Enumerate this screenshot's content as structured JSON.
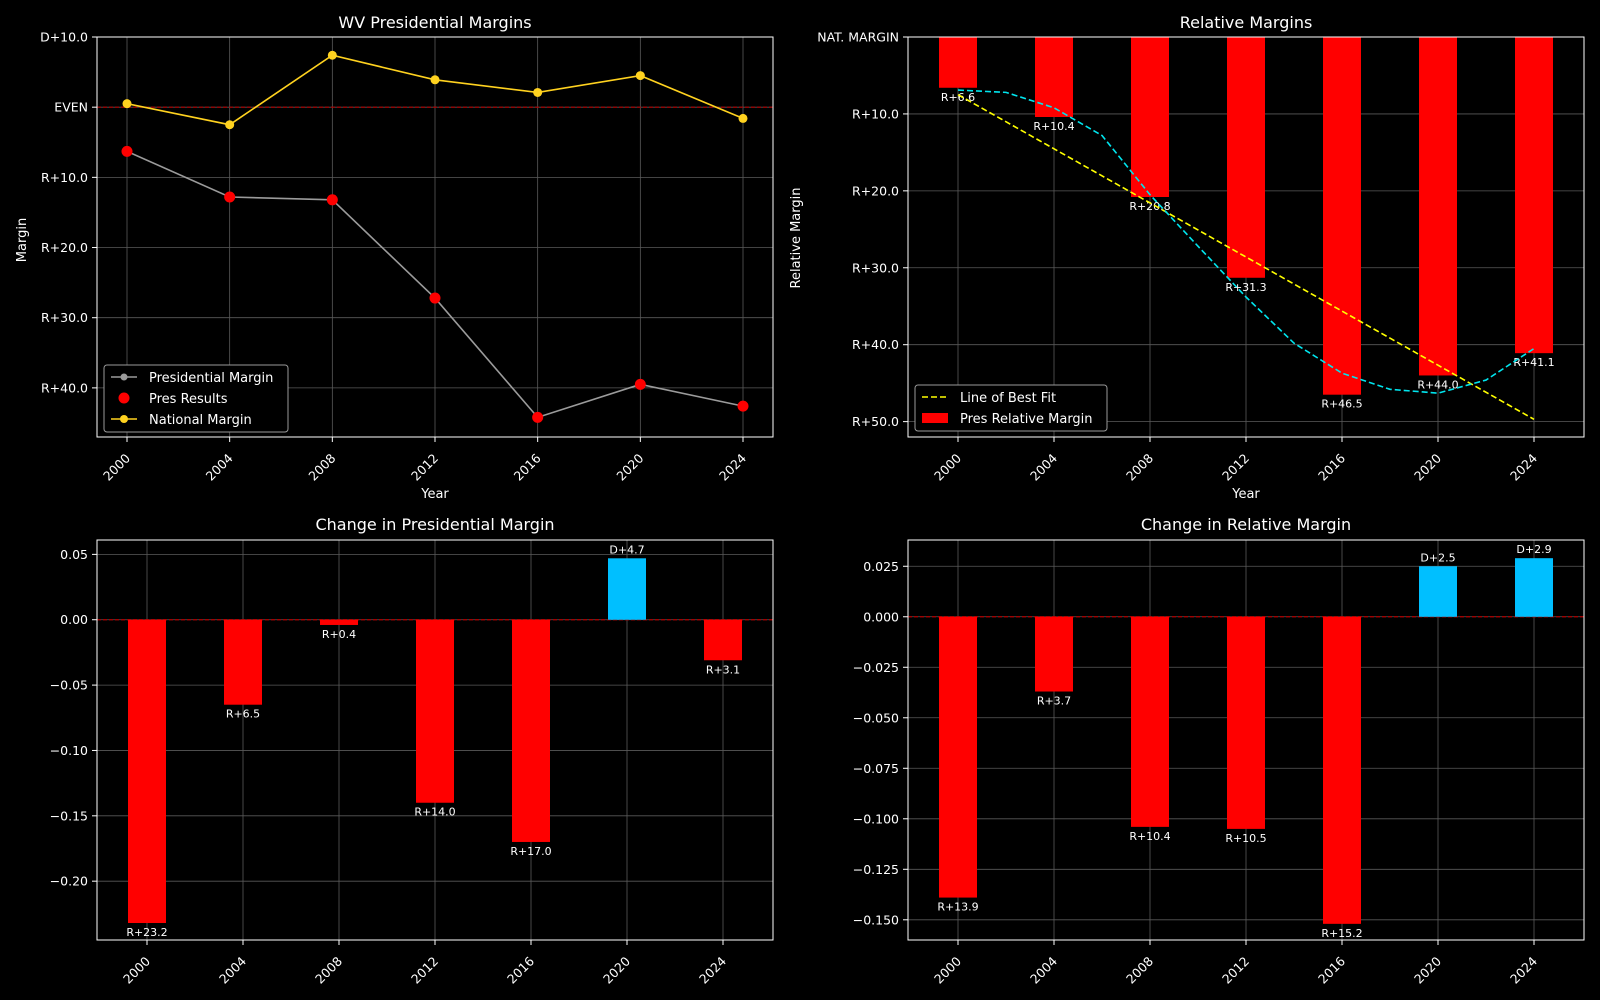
{
  "figure": {
    "background": "#000000",
    "text_color": "#ffffff",
    "grid_color": "#5a5a5a"
  },
  "chart_data": [
    {
      "id": "wv-margins",
      "type": "line",
      "title": "WV Presidential Margins",
      "xlabel": "Year",
      "ylabel": "Margin",
      "categories": [
        "2000",
        "2004",
        "2008",
        "2012",
        "2016",
        "2020",
        "2024"
      ],
      "ylim": [
        -0.47,
        0.1
      ],
      "yticks": [
        {
          "value": 0.1,
          "label": "D+10.0"
        },
        {
          "value": 0.0,
          "label": "EVEN"
        },
        {
          "value": -0.1,
          "label": "R+10.0"
        },
        {
          "value": -0.2,
          "label": "R+20.0"
        },
        {
          "value": -0.3,
          "label": "R+30.0"
        },
        {
          "value": -0.4,
          "label": "R+40.0"
        }
      ],
      "reference_line": {
        "value": 0.0,
        "color": "#b30000",
        "style": "dashed"
      },
      "series": [
        {
          "name": "Presidential Margin",
          "color": "#9b9b9b",
          "marker": "circle",
          "values": [
            -0.063,
            -0.128,
            -0.132,
            -0.272,
            -0.442,
            -0.395,
            -0.426
          ]
        },
        {
          "name": "Pres Results",
          "color": "#ff0000",
          "marker": "large-circle",
          "style": "points-only",
          "values": [
            -0.063,
            -0.128,
            -0.132,
            -0.272,
            -0.442,
            -0.395,
            -0.426
          ]
        },
        {
          "name": "National Margin",
          "color": "#ffd21f",
          "marker": "circle",
          "values": [
            0.005,
            -0.025,
            0.074,
            0.039,
            0.021,
            0.045,
            -0.016
          ]
        }
      ],
      "legend_position": "lower-left",
      "legend": [
        "Presidential Margin",
        "Pres Results",
        "National Margin"
      ]
    },
    {
      "id": "relative-margins",
      "type": "bar",
      "title": "Relative Margins",
      "xlabel": "Year",
      "ylabel": "Relative Margin",
      "categories": [
        "2000",
        "2004",
        "2008",
        "2012",
        "2016",
        "2020",
        "2024"
      ],
      "ylim": [
        -0.52,
        0.0
      ],
      "yticks": [
        {
          "value": 0.0,
          "label": "NAT. MARGIN"
        },
        {
          "value": -0.1,
          "label": "R+10.0"
        },
        {
          "value": -0.2,
          "label": "R+20.0"
        },
        {
          "value": -0.3,
          "label": "R+30.0"
        },
        {
          "value": -0.4,
          "label": "R+40.0"
        },
        {
          "value": -0.5,
          "label": "R+50.0"
        }
      ],
      "series": [
        {
          "name": "Pres Relative Margin",
          "color": "#ff0000",
          "values": [
            -0.066,
            -0.104,
            -0.208,
            -0.313,
            -0.465,
            -0.44,
            -0.411
          ],
          "labels": [
            "R+6.6",
            "R+10.4",
            "R+20.8",
            "R+31.3",
            "R+46.5",
            "R+44.0",
            "R+41.1"
          ]
        }
      ],
      "trendlines": [
        {
          "name": "Line of Best Fit",
          "color": "#ffff00",
          "style": "dashed",
          "from": {
            "x": "2000",
            "y": -0.075
          },
          "to": {
            "x": "2024",
            "y": -0.497
          }
        },
        {
          "name": "",
          "color": "#00e5ee",
          "style": "dashed",
          "points": [
            {
              "x": 2000,
              "y": -0.069
            },
            {
              "x": 2002,
              "y": -0.072
            },
            {
              "x": 2004,
              "y": -0.092
            },
            {
              "x": 2006,
              "y": -0.128
            },
            {
              "x": 2008,
              "y": -0.205
            },
            {
              "x": 2010,
              "y": -0.272
            },
            {
              "x": 2012,
              "y": -0.338
            },
            {
              "x": 2014,
              "y": -0.398
            },
            {
              "x": 2016,
              "y": -0.437
            },
            {
              "x": 2018,
              "y": -0.458
            },
            {
              "x": 2020,
              "y": -0.463
            },
            {
              "x": 2022,
              "y": -0.446
            },
            {
              "x": 2024,
              "y": -0.405
            }
          ]
        }
      ],
      "legend_position": "lower-left",
      "legend": [
        "Line of Best Fit",
        "Pres Relative Margin"
      ]
    },
    {
      "id": "change-pres-margin",
      "type": "bar",
      "title": "Change in Presidential Margin",
      "xlabel": "",
      "ylabel": "",
      "categories": [
        "2000",
        "2004",
        "2008",
        "2012",
        "2016",
        "2020",
        "2024"
      ],
      "ylim": [
        -0.245,
        0.061
      ],
      "yticks": [
        {
          "value": 0.05,
          "label": "0.05"
        },
        {
          "value": 0.0,
          "label": "0.00"
        },
        {
          "value": -0.05,
          "label": "−0.05"
        },
        {
          "value": -0.1,
          "label": "−0.10"
        },
        {
          "value": -0.15,
          "label": "−0.15"
        },
        {
          "value": -0.2,
          "label": "−0.20"
        }
      ],
      "reference_line": {
        "value": 0.0,
        "color": "#b30000",
        "style": "dashed"
      },
      "series": [
        {
          "name": "",
          "values": [
            -0.232,
            -0.065,
            -0.004,
            -0.14,
            -0.17,
            0.047,
            -0.031
          ],
          "labels": [
            "R+23.2",
            "R+6.5",
            "R+0.4",
            "R+14.0",
            "R+17.0",
            "D+4.7",
            "R+3.1"
          ]
        }
      ],
      "colors": {
        "negative": "#ff0000",
        "positive": "#00bfff"
      }
    },
    {
      "id": "change-relative-margin",
      "type": "bar",
      "title": "Change in Relative Margin",
      "xlabel": "",
      "ylabel": "",
      "categories": [
        "2000",
        "2004",
        "2008",
        "2012",
        "2016",
        "2020",
        "2024"
      ],
      "ylim": [
        -0.16,
        0.038
      ],
      "yticks": [
        {
          "value": 0.025,
          "label": "0.025"
        },
        {
          "value": 0.0,
          "label": "0.000"
        },
        {
          "value": -0.025,
          "label": "−0.025"
        },
        {
          "value": -0.05,
          "label": "−0.050"
        },
        {
          "value": -0.075,
          "label": "−0.075"
        },
        {
          "value": -0.1,
          "label": "−0.100"
        },
        {
          "value": -0.125,
          "label": "−0.125"
        },
        {
          "value": -0.15,
          "label": "−0.150"
        }
      ],
      "reference_line": {
        "value": 0.0,
        "color": "#b30000",
        "style": "dashed"
      },
      "series": [
        {
          "name": "",
          "values": [
            -0.139,
            -0.037,
            -0.104,
            -0.105,
            -0.152,
            0.025,
            0.029
          ],
          "labels": [
            "R+13.9",
            "R+3.7",
            "R+10.4",
            "R+10.5",
            "R+15.2",
            "D+2.5",
            "D+2.9"
          ]
        }
      ],
      "colors": {
        "negative": "#ff0000",
        "positive": "#00bfff"
      }
    }
  ]
}
